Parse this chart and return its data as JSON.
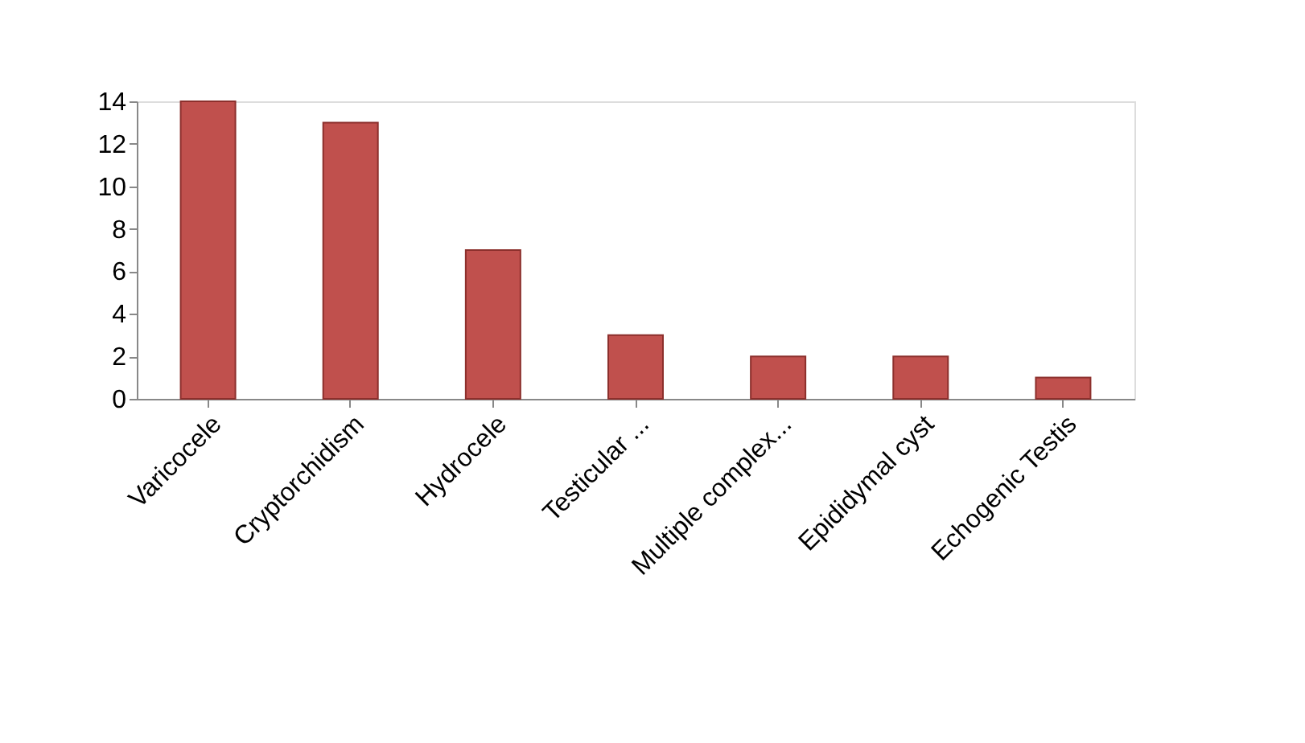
{
  "chart_data": {
    "type": "bar",
    "categories": [
      "Varicocele",
      "Cryptorchidism",
      "Hydrocele",
      "Testicular ...",
      "Multiple complex...",
      "Epididymal cyst",
      "Echogenic Testis"
    ],
    "values": [
      14,
      13,
      7,
      3,
      2,
      2,
      1
    ],
    "color": "#c0504d",
    "ylim": [
      0,
      14
    ],
    "yticks": [
      0,
      2,
      4,
      6,
      8,
      10,
      12,
      14
    ],
    "grid": false
  }
}
